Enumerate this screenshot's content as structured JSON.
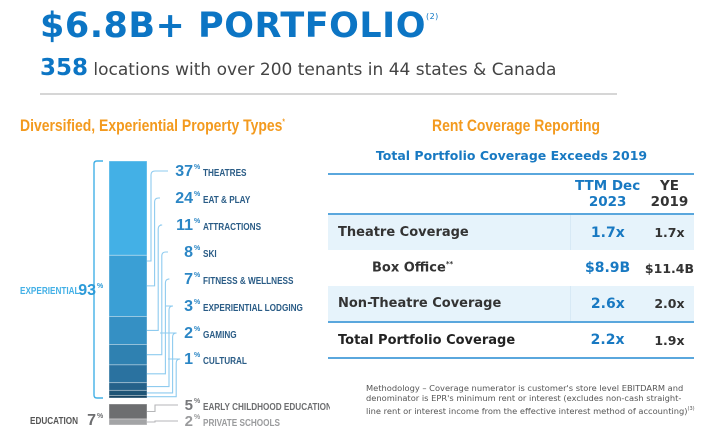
{
  "header": {
    "title": "$6.8B+ PORTFOLIO",
    "title_footnote": "(2)",
    "locations_count": "358",
    "locations_text": "locations with over 200 tenants in 44 states & Canada"
  },
  "chart_data": {
    "type": "bar",
    "subtype": "stacked-single",
    "title": "Diversified, Experiential Property Types",
    "title_footnote": "*",
    "unit": "%",
    "groups": [
      {
        "name": "EXPERIENTIAL",
        "total": 93,
        "color": "#3fa9dd"
      },
      {
        "name": "EDUCATION",
        "total": 7,
        "color": "#6d6e70"
      }
    ],
    "categories": [
      "THEATRES",
      "EAT & PLAY",
      "ATTRACTIONS",
      "SKI",
      "FITNESS & WELLNESS",
      "EXPERIENTIAL LODGING",
      "GAMING",
      "CULTURAL",
      "EARLY CHILDHOOD EDUCATION",
      "PRIVATE SCHOOLS"
    ],
    "values": [
      37,
      24,
      11,
      8,
      7,
      3,
      2,
      1,
      5,
      2
    ],
    "group_of": [
      "EXPERIENTIAL",
      "EXPERIENTIAL",
      "EXPERIENTIAL",
      "EXPERIENTIAL",
      "EXPERIENTIAL",
      "EXPERIENTIAL",
      "EXPERIENTIAL",
      "EXPERIENTIAL",
      "EDUCATION",
      "EDUCATION"
    ],
    "colors": [
      "#43b0e6",
      "#3a9fd5",
      "#3590c4",
      "#2f81b1",
      "#2a72a0",
      "#24618a",
      "#1e5476",
      "#184563",
      "#6d6e70",
      "#a3a4a6"
    ]
  },
  "coverage": {
    "section_title": "Rent Coverage Reporting",
    "subtitle": "Total Portfolio Coverage Exceeds 2019",
    "columns": [
      "",
      "TTM Dec 2023",
      "YE 2019"
    ],
    "column_lines": [
      [
        "TTM Dec",
        "2023"
      ],
      [
        "YE",
        "2019"
      ]
    ],
    "rows": [
      {
        "label": "Theatre Coverage",
        "ttm": "1.7x",
        "ye": "1.7x"
      },
      {
        "label": "Box Office",
        "label_footnote": "**",
        "ttm": "$8.9B",
        "ye": "$11.4B"
      },
      {
        "label": "Non-Theatre Coverage",
        "ttm": "2.6x",
        "ye": "2.0x"
      },
      {
        "label": "Total Portfolio Coverage",
        "ttm": "2.2x",
        "ye": "1.9x"
      }
    ],
    "note": "Methodology – Coverage numerator is customer's store level EBITDARM and denominator is EPR's minimum rent or interest (excludes non-cash straight-line rent or interest income from the effective interest method of accounting)",
    "note_footnote": "(3)"
  }
}
